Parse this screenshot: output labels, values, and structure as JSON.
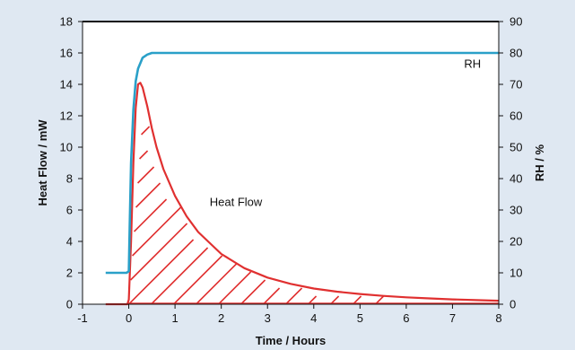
{
  "chart_data": {
    "type": "line",
    "xlabel": "Time  /  Hours",
    "ylabel_left": "Heat Flow  /  mW",
    "ylabel_right": "RH  /  %",
    "xlim": [
      -1,
      8
    ],
    "ylim_left": [
      0,
      18
    ],
    "ylim_right": [
      0,
      90
    ],
    "x_ticks": [
      -1,
      0,
      1,
      2,
      3,
      4,
      5,
      6,
      7,
      8
    ],
    "y_ticks_left": [
      0,
      2,
      4,
      6,
      8,
      10,
      12,
      14,
      16,
      18
    ],
    "y_ticks_right": [
      0,
      10,
      20,
      30,
      40,
      50,
      60,
      70,
      80,
      90
    ],
    "grid": false,
    "background_color": "#dfe8f2",
    "plot_background_color": "#ffffff",
    "series": [
      {
        "name": "RH",
        "axis": "right",
        "color": "#2aa0c8",
        "x": [
          -0.5,
          -0.05,
          0,
          0.02,
          0.05,
          0.1,
          0.15,
          0.2,
          0.3,
          0.4,
          0.5,
          1,
          2,
          3,
          4,
          5,
          6,
          7,
          8
        ],
        "y": [
          10,
          10,
          10.5,
          25,
          45,
          62,
          71,
          75,
          78.5,
          79.5,
          80,
          80,
          80,
          80,
          80,
          80,
          80,
          80,
          80
        ]
      },
      {
        "name": "Heat Flow",
        "axis": "left",
        "color": "#e03030",
        "x": [
          -0.5,
          -0.03,
          0,
          0.05,
          0.1,
          0.15,
          0.2,
          0.25,
          0.3,
          0.4,
          0.5,
          0.6,
          0.75,
          1,
          1.25,
          1.5,
          2,
          2.5,
          3,
          3.5,
          4,
          4.5,
          5,
          5.5,
          6,
          6.5,
          7,
          7.5,
          8
        ],
        "y": [
          0,
          0,
          0.3,
          4,
          9,
          12.5,
          14.0,
          14.1,
          13.8,
          12.6,
          11.2,
          10.0,
          8.6,
          6.9,
          5.6,
          4.6,
          3.2,
          2.3,
          1.7,
          1.3,
          1.0,
          0.8,
          0.65,
          0.53,
          0.44,
          0.37,
          0.31,
          0.26,
          0.22
        ]
      }
    ],
    "shaded_region": {
      "series": "Heat Flow",
      "pattern": "diagonal-hatch",
      "color": "#e03030"
    },
    "annotations": [
      {
        "text": "RH",
        "x": 7.25,
        "y_right": 76.5
      },
      {
        "text": "Heat Flow",
        "x": 1.75,
        "y_left": 6.5
      }
    ]
  }
}
